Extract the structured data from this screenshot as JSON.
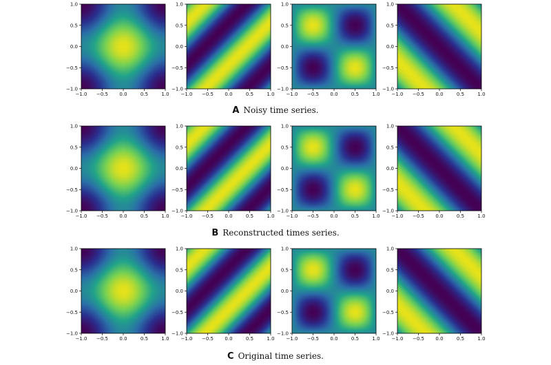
{
  "chart_data": [
    {
      "type": "heatmap",
      "label": "A",
      "caption": "Noisy time series.",
      "xlim": [
        -1.0,
        1.0
      ],
      "ylim": [
        -1.0,
        1.0
      ],
      "xticks": [
        "−1.0",
        "−0.5",
        "0.0",
        "0.5",
        "1.0"
      ],
      "yticks": [
        "−1.0",
        "−0.5",
        "0.0",
        "0.5",
        "1.0"
      ],
      "colormap": [
        "#440154",
        "#2a2f8f",
        "#2a6fa8",
        "#21a38a",
        "#73d055",
        "#e6e21a"
      ],
      "panels": [
        {
          "pattern": "cos_x_plus_cos_y"
        },
        {
          "pattern": "diagonal_stripes_rising"
        },
        {
          "pattern": "checker_2x2"
        },
        {
          "pattern": "diagonal_band_falling"
        }
      ]
    },
    {
      "type": "heatmap",
      "label": "B",
      "caption": "Reconstructed times series.",
      "xlim": [
        -1.0,
        1.0
      ],
      "ylim": [
        -1.0,
        1.0
      ],
      "xticks": [
        "−1.0",
        "−0.5",
        "0.0",
        "0.5",
        "1.0"
      ],
      "yticks": [
        "−1.0",
        "−0.5",
        "0.0",
        "0.5",
        "1.0"
      ],
      "colormap": [
        "#440154",
        "#2a2f8f",
        "#2a6fa8",
        "#21a38a",
        "#73d055",
        "#e6e21a"
      ],
      "panels": [
        {
          "pattern": "cos_x_plus_cos_y"
        },
        {
          "pattern": "diagonal_stripes_rising"
        },
        {
          "pattern": "checker_2x2"
        },
        {
          "pattern": "diagonal_band_falling"
        }
      ]
    },
    {
      "type": "heatmap",
      "label": "C",
      "caption": "Original time series.",
      "xlim": [
        -1.0,
        1.0
      ],
      "ylim": [
        -1.0,
        1.0
      ],
      "xticks": [
        "−1.0",
        "−0.5",
        "0.0",
        "0.5",
        "1.0"
      ],
      "yticks": [
        "−1.0",
        "−0.5",
        "0.0",
        "0.5",
        "1.0"
      ],
      "colormap": [
        "#440154",
        "#2a2f8f",
        "#2a6fa8",
        "#21a38a",
        "#73d055",
        "#e6e21a"
      ],
      "panels": [
        {
          "pattern": "cos_x_plus_cos_y"
        },
        {
          "pattern": "diagonal_stripes_rising"
        },
        {
          "pattern": "checker_2x2"
        },
        {
          "pattern": "diagonal_band_falling"
        }
      ]
    }
  ]
}
